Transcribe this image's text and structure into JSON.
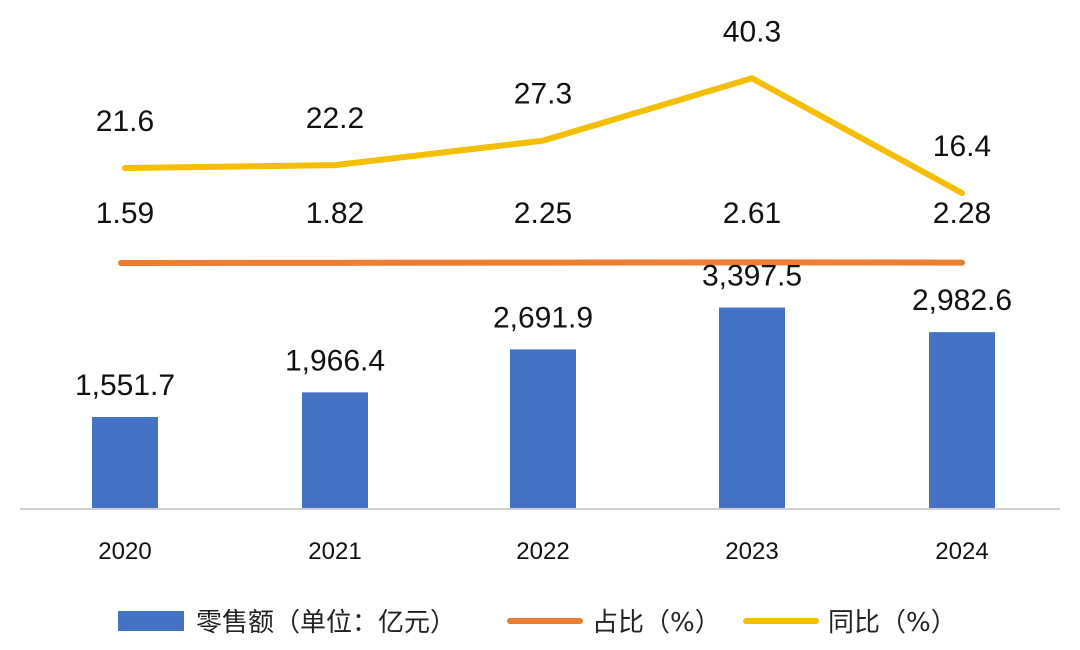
{
  "chart_data": {
    "type": "bar",
    "categories": [
      "2020",
      "2021",
      "2022",
      "2023",
      "2024"
    ],
    "series": [
      {
        "name": "零售额（单位：亿元）",
        "type": "bar",
        "values": [
          1551.7,
          1966.4,
          2691.9,
          3397.5,
          2982.6
        ],
        "labels": [
          "1,551.7",
          "1,966.4",
          "2,691.9",
          "3,397.5",
          "2,982.6"
        ],
        "color": "#4472C4"
      },
      {
        "name": "占比（%）",
        "type": "line",
        "values": [
          1.59,
          1.82,
          2.25,
          2.61,
          2.28
        ],
        "labels": [
          "1.59",
          "1.82",
          "2.25",
          "2.61",
          "2.28"
        ],
        "color": "#ED7D31"
      },
      {
        "name": "同比（%）",
        "type": "line",
        "values": [
          21.6,
          22.2,
          27.3,
          40.3,
          16.4
        ],
        "labels": [
          "21.6",
          "22.2",
          "27.3",
          "40.3",
          "16.4"
        ],
        "color": "#F5BE00"
      }
    ],
    "legend_position": "bottom",
    "grid": false
  }
}
